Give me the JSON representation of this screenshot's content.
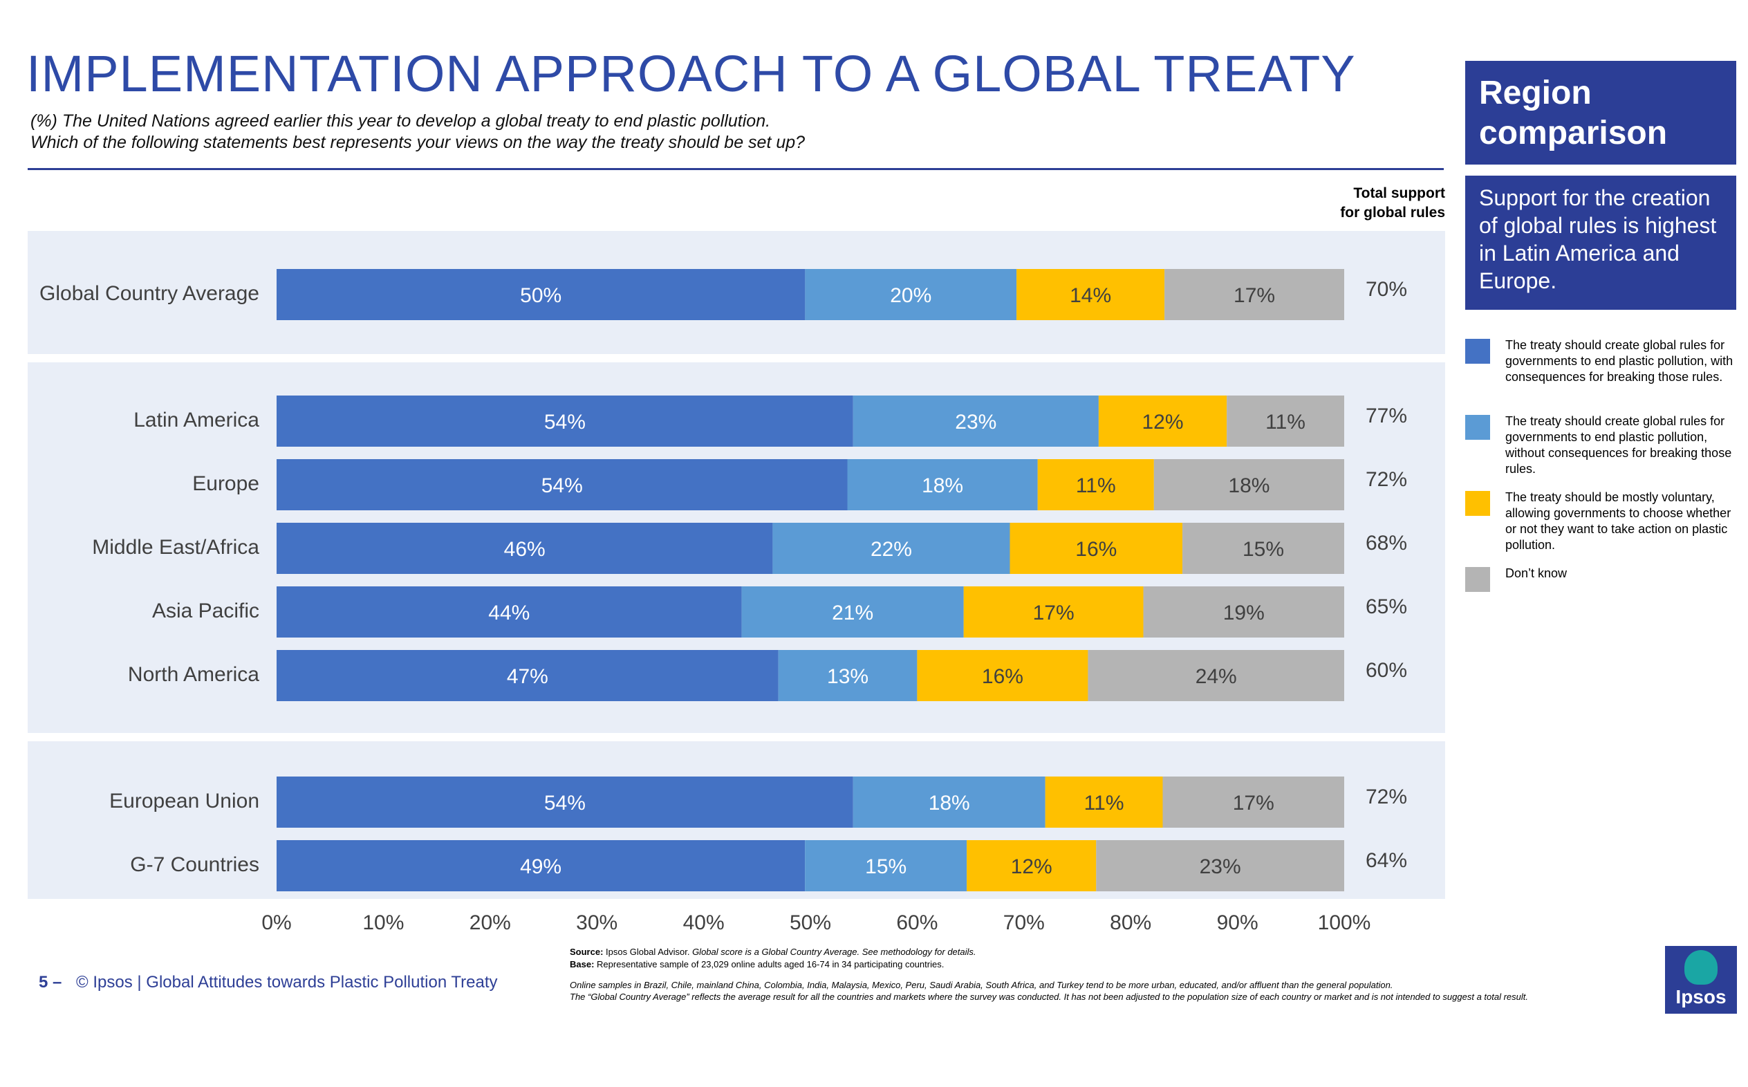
{
  "title": "IMPLEMENTATION APPROACH TO A GLOBAL TREATY",
  "subtitle_line1": "(%) The United Nations agreed earlier this year to develop a global treaty to end plastic pollution.",
  "subtitle_line2": "Which of the following statements best represents your views on the way the treaty should be set up?",
  "sidebar": {
    "region_title_line1": "Region",
    "region_title_line2": "comparison",
    "insight": "Support for the creation of global rules is highest in Latin America and Europe."
  },
  "total_header_line1": "Total support",
  "total_header_line2": "for global rules",
  "colors": {
    "rules_with_consequences": "#4472c4",
    "rules_without_consequences": "#5b9bd5",
    "voluntary": "#ffc000",
    "dont_know": "#b4b4b4",
    "brand_blue": "#2c3e96",
    "panel_bg": "#e9eef7"
  },
  "chart_data": {
    "type": "bar",
    "orientation": "horizontal-stacked",
    "title": "IMPLEMENTATION APPROACH TO A GLOBAL TREATY",
    "xlabel": "",
    "ylabel": "",
    "xlim": [
      0,
      100
    ],
    "x_ticks": [
      "0%",
      "10%",
      "20%",
      "30%",
      "40%",
      "50%",
      "60%",
      "70%",
      "80%",
      "90%",
      "100%"
    ],
    "categories": [
      "Global Country Average",
      "Latin America",
      "Europe",
      "Middle East/Africa",
      "Asia Pacific",
      "North America",
      "European Union",
      "G-7 Countries"
    ],
    "groups": [
      [
        "Global Country Average"
      ],
      [
        "Latin America",
        "Europe",
        "Middle East/Africa",
        "Asia Pacific",
        "North America"
      ],
      [
        "European Union",
        "G-7 Countries"
      ]
    ],
    "series": [
      {
        "name": "The treaty should create global rules for governments to end plastic pollution, with consequences for breaking those rules.",
        "values": [
          50,
          54,
          54,
          46,
          44,
          47,
          54,
          49
        ]
      },
      {
        "name": "The treaty should create global rules for governments to end plastic pollution, without consequences for breaking those rules.",
        "values": [
          20,
          23,
          18,
          22,
          21,
          13,
          18,
          15
        ]
      },
      {
        "name": "The treaty should be mostly voluntary, allowing governments to choose whether or not they want to take action on plastic pollution.",
        "values": [
          14,
          12,
          11,
          16,
          17,
          16,
          11,
          12
        ]
      },
      {
        "name": "Don’t know",
        "values": [
          17,
          11,
          18,
          15,
          19,
          24,
          17,
          23
        ]
      }
    ],
    "total_support": [
      "70%",
      "77%",
      "72%",
      "68%",
      "65%",
      "60%",
      "72%",
      "64%"
    ],
    "legend_position": "right",
    "grid": false
  },
  "footer": {
    "page_number": "5 –",
    "text": "© Ipsos | Global Attitudes towards Plastic Pollution Treaty",
    "source_label": "Source:",
    "source_text": "Ipsos Global Advisor.",
    "source_italic": "Global score is a Global Country Average. See methodology for details.",
    "base_label": "Base:",
    "base_text": "Representative sample of 23,029 online adults aged 16-74 in 34 participating countries.",
    "note1": "Online samples in Brazil, Chile, mainland China, Colombia, India, Malaysia, Mexico, Peru, Saudi Arabia, South Africa, and Turkey tend to be more urban, educated, and/or affluent than the general population.",
    "note2": "The “Global Country Average” reflects the average result for all the countries and markets where the survey was conducted. It has not been adjusted to the population size of each country or market and is not intended to suggest a total result.",
    "logo_text": "Ipsos"
  }
}
